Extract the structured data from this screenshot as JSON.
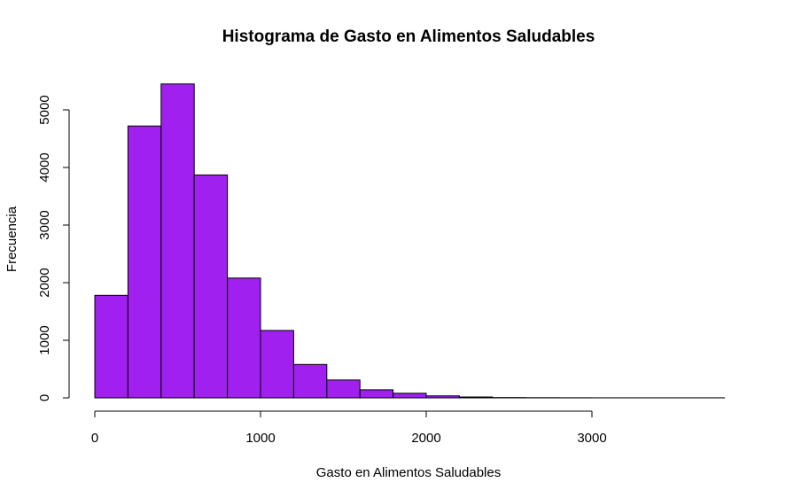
{
  "chart_data": {
    "type": "bar",
    "title": "Histograma de Gasto en Alimentos Saludables",
    "xlabel": "Gasto en Alimentos Saludables",
    "ylabel": "Frecuencia",
    "bar_color": "#A020F0",
    "bin_width": 200,
    "bins": [
      {
        "x0": 0,
        "x1": 200,
        "count": 1780
      },
      {
        "x0": 200,
        "x1": 400,
        "count": 4720
      },
      {
        "x0": 400,
        "x1": 600,
        "count": 5450
      },
      {
        "x0": 600,
        "x1": 800,
        "count": 3870
      },
      {
        "x0": 800,
        "x1": 1000,
        "count": 2080
      },
      {
        "x0": 1000,
        "x1": 1200,
        "count": 1170
      },
      {
        "x0": 1200,
        "x1": 1400,
        "count": 580
      },
      {
        "x0": 1400,
        "x1": 1600,
        "count": 310
      },
      {
        "x0": 1600,
        "x1": 1800,
        "count": 140
      },
      {
        "x0": 1800,
        "x1": 2000,
        "count": 80
      },
      {
        "x0": 2000,
        "x1": 2200,
        "count": 35
      },
      {
        "x0": 2200,
        "x1": 2400,
        "count": 15
      },
      {
        "x0": 2400,
        "x1": 2600,
        "count": 5
      },
      {
        "x0": 2600,
        "x1": 2800,
        "count": 3
      },
      {
        "x0": 2800,
        "x1": 3000,
        "count": 2
      },
      {
        "x0": 3000,
        "x1": 3200,
        "count": 1
      },
      {
        "x0": 3200,
        "x1": 3400,
        "count": 1
      },
      {
        "x0": 3400,
        "x1": 3600,
        "count": 1
      },
      {
        "x0": 3600,
        "x1": 3800,
        "count": 1
      }
    ],
    "x_ticks": [
      0,
      1000,
      2000,
      3000
    ],
    "y_ticks": [
      0,
      1000,
      2000,
      3000,
      4000,
      5000
    ],
    "xlim": [
      0,
      3800
    ],
    "ylim": [
      0,
      5450
    ],
    "grid": false,
    "legend": "none"
  }
}
